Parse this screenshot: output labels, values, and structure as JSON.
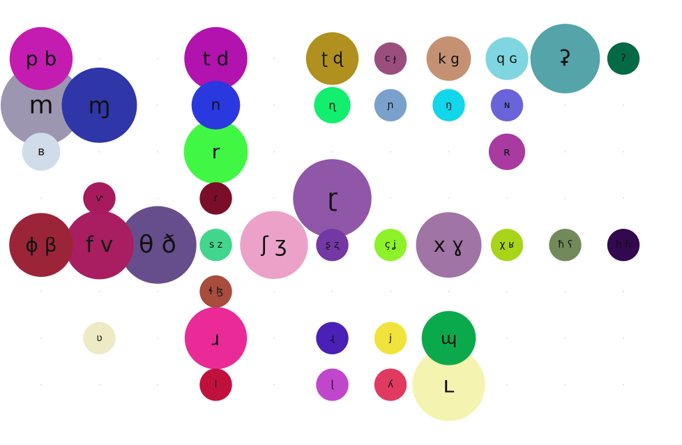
{
  "bubbles": [
    {
      "id": "p-b",
      "label": "p b",
      "color": "#c41cb0",
      "col": 0,
      "row": 0,
      "size": 0.78
    },
    {
      "id": "m",
      "label": "m",
      "color": "#9c96b0",
      "col": 0,
      "row": 1,
      "size": 1.0
    },
    {
      "id": "mg",
      "label": "ɱ",
      "color": "#2e36a8",
      "col": 1,
      "row": 1,
      "size": 0.93
    },
    {
      "id": "B",
      "label": "ʙ",
      "color": "#d0dcea",
      "col": 0,
      "row": 2,
      "size": 0.47
    },
    {
      "id": "t-d",
      "label": "t d",
      "color": "#b212ae",
      "col": 3,
      "row": 0,
      "size": 0.78
    },
    {
      "id": "n",
      "label": "n",
      "color": "#2a38e0",
      "col": 3,
      "row": 1,
      "size": 0.6
    },
    {
      "id": "r",
      "label": "r",
      "color": "#40f843",
      "col": 3,
      "row": 2,
      "size": 0.79
    },
    {
      "id": "flap",
      "label": "ɾ",
      "color": "#7a0e28",
      "col": 3,
      "row": 3,
      "size": 0.4
    },
    {
      "id": "th-dh",
      "label": "θ ð",
      "color": "#664e8c",
      "col": 2,
      "row": 4,
      "size": 0.96
    },
    {
      "id": "s-z",
      "label": "s z",
      "color": "#42d68c",
      "col": 3,
      "row": 4,
      "size": 0.4
    },
    {
      "id": "sh-zh",
      "label": "ʃ ʒ",
      "color": "#eca2c8",
      "col": 4,
      "row": 4,
      "size": 0.84
    },
    {
      "id": "lh",
      "label": "ɬ ɮ",
      "color": "#a84c3e",
      "col": 3,
      "row": 5,
      "size": 0.4
    },
    {
      "id": "r-app",
      "label": "ɹ",
      "color": "#ea2a96",
      "col": 3,
      "row": 6,
      "size": 0.77
    },
    {
      "id": "l",
      "label": "l",
      "color": "#c0103c",
      "col": 3,
      "row": 7,
      "size": 0.4
    },
    {
      "id": "ph-bh",
      "label": "ɸ β",
      "color": "#9c2438",
      "col": 0,
      "row": 4,
      "size": 0.79
    },
    {
      "id": "f-v",
      "label": "f v",
      "color": "#a81e60",
      "col": 1,
      "row": 4,
      "size": 0.85
    },
    {
      "id": "vflap",
      "label": "ⱱ",
      "color": "#a81a5e",
      "col": 1,
      "row": 3,
      "size": 0.4
    },
    {
      "id": "vapp",
      "label": "ʋ",
      "color": "#eeeac6",
      "col": 1,
      "row": 6,
      "size": 0.4
    },
    {
      "id": "rt-td",
      "label": "ʈ ɖ",
      "color": "#b0901e",
      "col": 5,
      "row": 0,
      "size": 0.65
    },
    {
      "id": "rt-n",
      "label": "ɳ",
      "color": "#12ee6e",
      "col": 5,
      "row": 1,
      "size": 0.45
    },
    {
      "id": "rt-r",
      "label": "ɽ",
      "color": "#9056a8",
      "col": 5,
      "row": 3,
      "size": 0.97
    },
    {
      "id": "rt-sz",
      "label": "ʂ ʐ",
      "color": "#7438a4",
      "col": 5,
      "row": 4,
      "size": 0.4
    },
    {
      "id": "rt-app",
      "label": "ɻ",
      "color": "#4a20b6",
      "col": 5,
      "row": 6,
      "size": 0.4
    },
    {
      "id": "rt-l",
      "label": "ɭ",
      "color": "#c046cc",
      "col": 5,
      "row": 7,
      "size": 0.4
    },
    {
      "id": "c-j",
      "label": "c ɟ",
      "color": "#9a4e7e",
      "col": 6,
      "row": 0,
      "size": 0.4
    },
    {
      "id": "pal-n",
      "label": "ɲ",
      "color": "#7aa0cc",
      "col": 6,
      "row": 1,
      "size": 0.4
    },
    {
      "id": "pal-f",
      "label": "ç ʝ",
      "color": "#8ef228",
      "col": 6,
      "row": 4,
      "size": 0.4
    },
    {
      "id": "j",
      "label": "j",
      "color": "#f0e43c",
      "col": 6,
      "row": 6,
      "size": 0.4
    },
    {
      "id": "pal-l",
      "label": "ʎ",
      "color": "#e03a60",
      "col": 6,
      "row": 7,
      "size": 0.4
    },
    {
      "id": "k-g",
      "label": "k g",
      "color": "#c49272",
      "col": 7,
      "row": 0,
      "size": 0.55
    },
    {
      "id": "vel-n",
      "label": "ŋ",
      "color": "#12d6ea",
      "col": 7,
      "row": 1,
      "size": 0.4
    },
    {
      "id": "x-g",
      "label": "x ɣ",
      "color": "#a074a4",
      "col": 7,
      "row": 4,
      "size": 0.81
    },
    {
      "id": "vel-a",
      "label": "ɰ",
      "color": "#0aaa4c",
      "col": 7,
      "row": 6,
      "size": 0.67
    },
    {
      "id": "vel-l",
      "label": "ʟ",
      "color": "#f4f4b0",
      "col": 7,
      "row": 7,
      "size": 0.9
    },
    {
      "id": "q-G",
      "label": "q ɢ",
      "color": "#80d6e0",
      "col": 8,
      "row": 0,
      "size": 0.53
    },
    {
      "id": "uv-n",
      "label": "ɴ",
      "color": "#6a64da",
      "col": 8,
      "row": 1,
      "size": 0.4
    },
    {
      "id": "uv-R",
      "label": "ʀ",
      "color": "#a83aa0",
      "col": 8,
      "row": 2,
      "size": 0.45
    },
    {
      "id": "uv-f",
      "label": "χ ʁ",
      "color": "#a8d41a",
      "col": 8,
      "row": 4,
      "size": 0.4
    },
    {
      "id": "ph-st",
      "label": "ʡ",
      "color": "#54a4aa",
      "col": 9,
      "row": 0,
      "size": 0.86
    },
    {
      "id": "ph-f",
      "label": "ħ ʕ",
      "color": "#728a5a",
      "col": 9,
      "row": 4,
      "size": 0.4
    },
    {
      "id": "gl-st",
      "label": "ʔ",
      "color": "#046a46",
      "col": 10,
      "row": 0,
      "size": 0.4
    },
    {
      "id": "gl-f",
      "label": "h ɦ",
      "color": "#32084e",
      "col": 10,
      "row": 4,
      "size": 0.4
    }
  ]
}
